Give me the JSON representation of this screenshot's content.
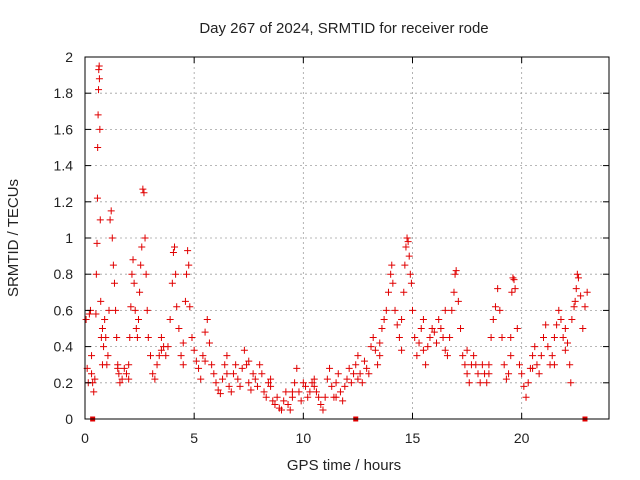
{
  "chart_data": {
    "type": "scatter",
    "title": "Day 267 of 2024, SRMTID for receiver rode",
    "xlabel": "GPS time / hours",
    "ylabel": "SRMTID / TECUs",
    "xlim": [
      0,
      24
    ],
    "ylim": [
      0,
      2
    ],
    "xticks": [
      0,
      5,
      10,
      15,
      20
    ],
    "xtick_labels": [
      "0",
      "5",
      "10",
      "15",
      "20"
    ],
    "yticks": [
      0,
      0.2,
      0.4,
      0.6,
      0.8,
      1.0,
      1.2,
      1.4,
      1.6,
      1.8,
      2.0
    ],
    "ytick_labels": [
      "0",
      "0.2",
      "0.4",
      "0.6",
      "0.8",
      "1",
      "1.2",
      "1.4",
      "1.6",
      "1.8",
      "2"
    ],
    "grid": true,
    "marker": "+",
    "color": "#e00000",
    "gap_markers_x": [
      0.35,
      12.4,
      22.9
    ],
    "series": [
      {
        "name": "SRMTID",
        "points": [
          [
            0.05,
            0.55
          ],
          [
            0.1,
            0.28
          ],
          [
            0.15,
            0.2
          ],
          [
            0.2,
            0.58
          ],
          [
            0.25,
            0.6
          ],
          [
            0.3,
            0.35
          ],
          [
            0.35,
            0.2
          ],
          [
            0.4,
            0.15
          ],
          [
            0.45,
            0.22
          ],
          [
            0.5,
            0.58
          ],
          [
            0.52,
            0.8
          ],
          [
            0.55,
            0.97
          ],
          [
            0.57,
            1.22
          ],
          [
            0.58,
            1.5
          ],
          [
            0.6,
            1.68
          ],
          [
            0.62,
            1.82
          ],
          [
            0.63,
            1.93
          ],
          [
            0.65,
            1.95
          ],
          [
            0.66,
            1.88
          ],
          [
            0.68,
            1.6
          ],
          [
            0.7,
            1.1
          ],
          [
            0.72,
            0.65
          ],
          [
            0.75,
            0.45
          ],
          [
            0.8,
            0.3
          ],
          [
            0.85,
            0.4
          ],
          [
            0.9,
            0.55
          ],
          [
            0.95,
            0.45
          ],
          [
            1.0,
            0.3
          ],
          [
            1.05,
            0.35
          ],
          [
            1.1,
            0.6
          ],
          [
            1.15,
            1.1
          ],
          [
            1.2,
            1.15
          ],
          [
            1.25,
            1.0
          ],
          [
            1.3,
            0.85
          ],
          [
            1.35,
            0.75
          ],
          [
            1.4,
            0.6
          ],
          [
            1.45,
            0.45
          ],
          [
            1.5,
            0.3
          ],
          [
            1.55,
            0.25
          ],
          [
            1.6,
            0.2
          ],
          [
            1.7,
            0.22
          ],
          [
            1.8,
            0.28
          ],
          [
            1.9,
            0.25
          ],
          [
            2.0,
            0.3
          ],
          [
            2.05,
            0.45
          ],
          [
            2.1,
            0.62
          ],
          [
            2.15,
            0.8
          ],
          [
            2.2,
            0.88
          ],
          [
            2.25,
            0.75
          ],
          [
            2.3,
            0.6
          ],
          [
            2.35,
            0.5
          ],
          [
            2.4,
            0.45
          ],
          [
            2.45,
            0.55
          ],
          [
            2.5,
            0.7
          ],
          [
            2.55,
            0.85
          ],
          [
            2.6,
            0.95
          ],
          [
            2.65,
            1.27
          ],
          [
            2.7,
            1.25
          ],
          [
            2.75,
            1.0
          ],
          [
            2.8,
            0.8
          ],
          [
            2.85,
            0.6
          ],
          [
            2.9,
            0.45
          ],
          [
            3.0,
            0.35
          ],
          [
            3.1,
            0.25
          ],
          [
            3.2,
            0.22
          ],
          [
            3.3,
            0.3
          ],
          [
            3.4,
            0.35
          ],
          [
            3.5,
            0.45
          ],
          [
            3.6,
            0.4
          ],
          [
            3.7,
            0.35
          ],
          [
            3.8,
            0.4
          ],
          [
            3.9,
            0.55
          ],
          [
            4.0,
            0.75
          ],
          [
            4.05,
            0.92
          ],
          [
            4.1,
            0.95
          ],
          [
            4.15,
            0.8
          ],
          [
            4.2,
            0.62
          ],
          [
            4.3,
            0.5
          ],
          [
            4.4,
            0.35
          ],
          [
            4.5,
            0.42
          ],
          [
            4.6,
            0.65
          ],
          [
            4.65,
            0.8
          ],
          [
            4.7,
            0.93
          ],
          [
            4.75,
            0.85
          ],
          [
            4.8,
            0.62
          ],
          [
            4.9,
            0.45
          ],
          [
            5.0,
            0.38
          ],
          [
            5.1,
            0.32
          ],
          [
            5.2,
            0.28
          ],
          [
            5.3,
            0.22
          ],
          [
            5.4,
            0.35
          ],
          [
            5.5,
            0.48
          ],
          [
            5.6,
            0.55
          ],
          [
            5.7,
            0.42
          ],
          [
            5.8,
            0.3
          ],
          [
            5.9,
            0.25
          ],
          [
            6.0,
            0.2
          ],
          [
            6.1,
            0.16
          ],
          [
            6.2,
            0.14
          ],
          [
            6.3,
            0.22
          ],
          [
            6.4,
            0.3
          ],
          [
            6.5,
            0.25
          ],
          [
            6.6,
            0.18
          ],
          [
            6.7,
            0.15
          ],
          [
            6.8,
            0.25
          ],
          [
            6.9,
            0.3
          ],
          [
            7.0,
            0.22
          ],
          [
            7.1,
            0.18
          ],
          [
            7.2,
            0.28
          ],
          [
            7.3,
            0.38
          ],
          [
            7.4,
            0.3
          ],
          [
            7.5,
            0.2
          ],
          [
            7.6,
            0.16
          ],
          [
            7.7,
            0.25
          ],
          [
            7.8,
            0.22
          ],
          [
            7.9,
            0.18
          ],
          [
            8.0,
            0.3
          ],
          [
            8.1,
            0.25
          ],
          [
            8.2,
            0.15
          ],
          [
            8.3,
            0.12
          ],
          [
            8.4,
            0.2
          ],
          [
            8.5,
            0.18
          ],
          [
            8.6,
            0.1
          ],
          [
            8.7,
            0.08
          ],
          [
            8.8,
            0.12
          ],
          [
            8.9,
            0.06
          ],
          [
            9.0,
            0.05
          ],
          [
            9.1,
            0.1
          ],
          [
            9.2,
            0.15
          ],
          [
            9.3,
            0.08
          ],
          [
            9.4,
            0.05
          ],
          [
            9.5,
            0.12
          ],
          [
            9.6,
            0.2
          ],
          [
            9.7,
            0.28
          ],
          [
            9.8,
            0.15
          ],
          [
            9.9,
            0.1
          ],
          [
            10.0,
            0.2
          ],
          [
            10.1,
            0.18
          ],
          [
            10.2,
            0.12
          ],
          [
            10.3,
            0.15
          ],
          [
            10.4,
            0.2
          ],
          [
            10.5,
            0.22
          ],
          [
            10.6,
            0.15
          ],
          [
            10.7,
            0.12
          ],
          [
            10.8,
            0.08
          ],
          [
            10.9,
            0.05
          ],
          [
            11.0,
            0.12
          ],
          [
            11.1,
            0.22
          ],
          [
            11.2,
            0.28
          ],
          [
            11.3,
            0.18
          ],
          [
            11.4,
            0.12
          ],
          [
            11.5,
            0.2
          ],
          [
            11.6,
            0.25
          ],
          [
            11.7,
            0.15
          ],
          [
            11.8,
            0.1
          ],
          [
            11.9,
            0.18
          ],
          [
            12.0,
            0.22
          ],
          [
            12.1,
            0.28
          ],
          [
            12.2,
            0.2
          ],
          [
            12.3,
            0.25
          ],
          [
            12.4,
            0.3
          ],
          [
            12.5,
            0.35
          ],
          [
            12.6,
            0.25
          ],
          [
            12.7,
            0.2
          ],
          [
            12.8,
            0.32
          ],
          [
            12.9,
            0.28
          ],
          [
            13.0,
            0.25
          ],
          [
            13.1,
            0.4
          ],
          [
            13.2,
            0.45
          ],
          [
            13.3,
            0.38
          ],
          [
            13.4,
            0.3
          ],
          [
            13.5,
            0.42
          ],
          [
            13.6,
            0.5
          ],
          [
            13.7,
            0.55
          ],
          [
            13.8,
            0.6
          ],
          [
            13.9,
            0.7
          ],
          [
            14.0,
            0.8
          ],
          [
            14.05,
            0.85
          ],
          [
            14.1,
            0.75
          ],
          [
            14.2,
            0.6
          ],
          [
            14.3,
            0.52
          ],
          [
            14.4,
            0.45
          ],
          [
            14.5,
            0.55
          ],
          [
            14.6,
            0.7
          ],
          [
            14.65,
            0.85
          ],
          [
            14.7,
            0.95
          ],
          [
            14.75,
            1.0
          ],
          [
            14.8,
            0.98
          ],
          [
            14.85,
            0.9
          ],
          [
            14.9,
            0.8
          ],
          [
            14.95,
            0.75
          ],
          [
            15.0,
            0.6
          ],
          [
            15.1,
            0.45
          ],
          [
            15.2,
            0.35
          ],
          [
            15.3,
            0.42
          ],
          [
            15.4,
            0.5
          ],
          [
            15.5,
            0.38
          ],
          [
            15.6,
            0.3
          ],
          [
            15.7,
            0.4
          ],
          [
            15.8,
            0.45
          ],
          [
            15.9,
            0.5
          ],
          [
            16.0,
            0.48
          ],
          [
            16.1,
            0.42
          ],
          [
            16.2,
            0.55
          ],
          [
            16.3,
            0.5
          ],
          [
            16.4,
            0.45
          ],
          [
            16.5,
            0.38
          ],
          [
            16.6,
            0.35
          ],
          [
            16.7,
            0.45
          ],
          [
            16.8,
            0.6
          ],
          [
            16.9,
            0.7
          ],
          [
            16.95,
            0.8
          ],
          [
            17.0,
            0.82
          ],
          [
            17.1,
            0.65
          ],
          [
            17.2,
            0.5
          ],
          [
            17.3,
            0.35
          ],
          [
            17.4,
            0.3
          ],
          [
            17.5,
            0.25
          ],
          [
            17.6,
            0.2
          ],
          [
            17.7,
            0.3
          ],
          [
            17.8,
            0.35
          ],
          [
            17.9,
            0.3
          ],
          [
            18.0,
            0.25
          ],
          [
            18.1,
            0.2
          ],
          [
            18.2,
            0.3
          ],
          [
            18.3,
            0.25
          ],
          [
            18.4,
            0.2
          ],
          [
            18.5,
            0.3
          ],
          [
            18.6,
            0.45
          ],
          [
            18.7,
            0.55
          ],
          [
            18.8,
            0.62
          ],
          [
            18.9,
            0.72
          ],
          [
            19.0,
            0.6
          ],
          [
            19.1,
            0.45
          ],
          [
            19.2,
            0.3
          ],
          [
            19.3,
            0.22
          ],
          [
            19.4,
            0.25
          ],
          [
            19.5,
            0.45
          ],
          [
            19.55,
            0.7
          ],
          [
            19.6,
            0.78
          ],
          [
            19.65,
            0.77
          ],
          [
            19.7,
            0.72
          ],
          [
            19.8,
            0.5
          ],
          [
            19.9,
            0.3
          ],
          [
            20.0,
            0.25
          ],
          [
            20.1,
            0.18
          ],
          [
            20.2,
            0.12
          ],
          [
            20.3,
            0.2
          ],
          [
            20.4,
            0.28
          ],
          [
            20.5,
            0.35
          ],
          [
            20.6,
            0.4
          ],
          [
            20.7,
            0.3
          ],
          [
            20.8,
            0.25
          ],
          [
            20.9,
            0.35
          ],
          [
            21.0,
            0.45
          ],
          [
            21.1,
            0.52
          ],
          [
            21.2,
            0.4
          ],
          [
            21.3,
            0.3
          ],
          [
            21.4,
            0.35
          ],
          [
            21.5,
            0.45
          ],
          [
            21.6,
            0.52
          ],
          [
            21.7,
            0.6
          ],
          [
            21.8,
            0.55
          ],
          [
            21.9,
            0.45
          ],
          [
            22.0,
            0.5
          ],
          [
            22.1,
            0.42
          ],
          [
            22.2,
            0.3
          ],
          [
            22.25,
            0.2
          ],
          [
            22.3,
            0.55
          ],
          [
            22.4,
            0.62
          ],
          [
            22.45,
            0.65
          ],
          [
            22.5,
            0.72
          ],
          [
            22.55,
            0.8
          ],
          [
            22.6,
            0.78
          ],
          [
            22.7,
            0.68
          ],
          [
            22.8,
            0.5
          ],
          [
            22.9,
            0.62
          ],
          [
            23.0,
            0.7
          ],
          [
            0.3,
            0.25
          ],
          [
            0.8,
            0.5
          ],
          [
            1.5,
            0.28
          ],
          [
            2.0,
            0.22
          ],
          [
            3.5,
            0.38
          ],
          [
            4.5,
            0.3
          ],
          [
            5.5,
            0.32
          ],
          [
            6.5,
            0.35
          ],
          [
            7.5,
            0.32
          ],
          [
            8.5,
            0.22
          ],
          [
            9.5,
            0.15
          ],
          [
            10.5,
            0.18
          ],
          [
            11.5,
            0.12
          ],
          [
            12.5,
            0.22
          ],
          [
            13.5,
            0.35
          ],
          [
            14.5,
            0.38
          ],
          [
            15.5,
            0.55
          ],
          [
            16.5,
            0.6
          ],
          [
            17.5,
            0.38
          ],
          [
            18.5,
            0.25
          ],
          [
            19.5,
            0.35
          ],
          [
            20.5,
            0.28
          ],
          [
            21.5,
            0.3
          ],
          [
            22.0,
            0.38
          ]
        ]
      }
    ]
  }
}
